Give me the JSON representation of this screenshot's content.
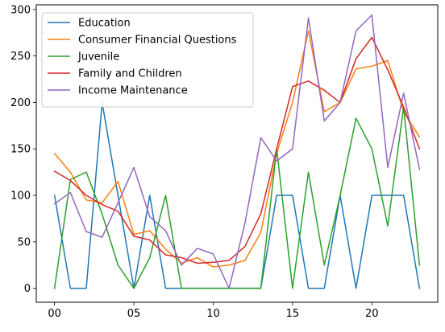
{
  "chart_data": {
    "type": "line",
    "title": "",
    "xlabel": "",
    "ylabel": "",
    "x": [
      0,
      1,
      2,
      3,
      4,
      5,
      6,
      7,
      8,
      9,
      10,
      11,
      12,
      13,
      14,
      15,
      16,
      17,
      18,
      19,
      20,
      21,
      22,
      23
    ],
    "xlim": [
      -1.15,
      24.15
    ],
    "ylim": [
      -15,
      305
    ],
    "xticks": [
      {
        "value": 0,
        "label": "00"
      },
      {
        "value": 5,
        "label": "05"
      },
      {
        "value": 10,
        "label": "10"
      },
      {
        "value": 15,
        "label": "15"
      },
      {
        "value": 20,
        "label": "20"
      }
    ],
    "yticks": [
      {
        "value": 0,
        "label": "0"
      },
      {
        "value": 50,
        "label": "50"
      },
      {
        "value": 100,
        "label": "100"
      },
      {
        "value": 150,
        "label": "150"
      },
      {
        "value": 200,
        "label": "200"
      },
      {
        "value": 250,
        "label": "250"
      },
      {
        "value": 300,
        "label": "300"
      }
    ],
    "grid": false,
    "legend_position": "upper-left",
    "series": [
      {
        "name": "Education",
        "color": "#1f77b4",
        "values": [
          100,
          0,
          0,
          200,
          100,
          0,
          100,
          0,
          0,
          0,
          0,
          0,
          0,
          0,
          100,
          100,
          0,
          0,
          100,
          0,
          100,
          100,
          100,
          0
        ]
      },
      {
        "name": "Consumer Financial Questions",
        "color": "#ff7f0e",
        "values": [
          145,
          125,
          95,
          92,
          115,
          58,
          62,
          42,
          27,
          33,
          23,
          25,
          30,
          60,
          145,
          200,
          277,
          190,
          200,
          236,
          239,
          245,
          190,
          163
        ]
      },
      {
        "name": "Juvenile",
        "color": "#2ca02c",
        "values": [
          0,
          117,
          125,
          80,
          25,
          0,
          33,
          100,
          0,
          0,
          0,
          0,
          0,
          0,
          150,
          0,
          125,
          25,
          100,
          183,
          150,
          67,
          195,
          25
        ]
      },
      {
        "name": "Family and Children",
        "color": "#d62728",
        "values": [
          126,
          116,
          100,
          90,
          83,
          56,
          52,
          36,
          33,
          27,
          28,
          30,
          45,
          80,
          150,
          217,
          223,
          213,
          200,
          247,
          270,
          235,
          195,
          150
        ]
      },
      {
        "name": "Income Maintenance",
        "color": "#9467bd",
        "values": [
          91,
          103,
          61,
          55,
          92,
          130,
          77,
          62,
          25,
          43,
          37,
          0,
          70,
          162,
          137,
          150,
          291,
          180,
          200,
          277,
          294,
          130,
          210,
          128
        ]
      }
    ]
  }
}
